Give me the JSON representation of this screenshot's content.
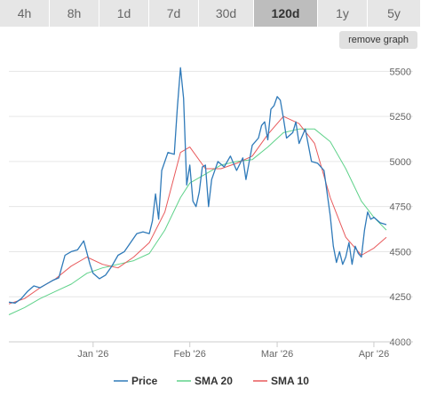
{
  "timeframes": [
    {
      "label": "4h",
      "active": false
    },
    {
      "label": "8h",
      "active": false
    },
    {
      "label": "1d",
      "active": false
    },
    {
      "label": "7d",
      "active": false
    },
    {
      "label": "30d",
      "active": false
    },
    {
      "label": "120d",
      "active": true
    },
    {
      "label": "1y",
      "active": false
    },
    {
      "label": "5y",
      "active": false
    }
  ],
  "remove_graph_label": "remove graph",
  "colors": {
    "price": "#2f7ab9",
    "sma20": "#5fd28a",
    "sma10": "#e8595b",
    "grid": "#e6e6e6"
  },
  "chart_data": {
    "type": "line",
    "x_range": [
      "2025-12-05",
      "2026-04-05"
    ],
    "ylim": [
      4000,
      5600
    ],
    "y_ticks": [
      4000,
      4250,
      4500,
      4750,
      5000,
      5250,
      5500
    ],
    "x_ticks": [
      {
        "label": "Jan '26",
        "date": "2026-01-01"
      },
      {
        "label": "Feb '26",
        "date": "2026-02-01"
      },
      {
        "label": "Mar '26",
        "date": "2026-03-01"
      },
      {
        "label": "Apr '26",
        "date": "2026-04-01"
      }
    ],
    "grid": true,
    "legend_position": "bottom-center",
    "series": [
      {
        "name": "Price",
        "color": "#2f7ab9",
        "points": [
          [
            "2025-12-05",
            4220
          ],
          [
            "2025-12-07",
            4215
          ],
          [
            "2025-12-09",
            4240
          ],
          [
            "2025-12-11",
            4280
          ],
          [
            "2025-12-13",
            4310
          ],
          [
            "2025-12-15",
            4300
          ],
          [
            "2025-12-17",
            4320
          ],
          [
            "2025-12-19",
            4340
          ],
          [
            "2025-12-21",
            4355
          ],
          [
            "2025-12-23",
            4480
          ],
          [
            "2025-12-25",
            4500
          ],
          [
            "2025-12-27",
            4510
          ],
          [
            "2025-12-29",
            4560
          ],
          [
            "2025-12-31",
            4430
          ],
          [
            "2026-01-01",
            4380
          ],
          [
            "2026-01-03",
            4350
          ],
          [
            "2026-01-05",
            4370
          ],
          [
            "2026-01-07",
            4420
          ],
          [
            "2026-01-09",
            4480
          ],
          [
            "2026-01-11",
            4500
          ],
          [
            "2026-01-13",
            4550
          ],
          [
            "2026-01-15",
            4600
          ],
          [
            "2026-01-17",
            4610
          ],
          [
            "2026-01-19",
            4600
          ],
          [
            "2026-01-20",
            4670
          ],
          [
            "2026-01-21",
            4820
          ],
          [
            "2026-01-22",
            4680
          ],
          [
            "2026-01-23",
            4950
          ],
          [
            "2026-01-25",
            5050
          ],
          [
            "2026-01-27",
            5040
          ],
          [
            "2026-01-28",
            5300
          ],
          [
            "2026-01-29",
            5520
          ],
          [
            "2026-01-30",
            5350
          ],
          [
            "2026-01-31",
            4870
          ],
          [
            "2026-02-01",
            4980
          ],
          [
            "2026-02-02",
            4780
          ],
          [
            "2026-02-03",
            4750
          ],
          [
            "2026-02-04",
            4830
          ],
          [
            "2026-02-05",
            4970
          ],
          [
            "2026-02-06",
            4980
          ],
          [
            "2026-02-07",
            4750
          ],
          [
            "2026-02-08",
            4900
          ],
          [
            "2026-02-10",
            5000
          ],
          [
            "2026-02-12",
            4970
          ],
          [
            "2026-02-14",
            5030
          ],
          [
            "2026-02-16",
            4950
          ],
          [
            "2026-02-18",
            5020
          ],
          [
            "2026-02-19",
            4900
          ],
          [
            "2026-02-21",
            5090
          ],
          [
            "2026-02-23",
            5130
          ],
          [
            "2026-02-24",
            5200
          ],
          [
            "2026-02-25",
            5220
          ],
          [
            "2026-02-26",
            5120
          ],
          [
            "2026-02-27",
            5290
          ],
          [
            "2026-02-28",
            5310
          ],
          [
            "2026-03-01",
            5360
          ],
          [
            "2026-03-02",
            5340
          ],
          [
            "2026-03-03",
            5240
          ],
          [
            "2026-03-04",
            5130
          ],
          [
            "2026-03-06",
            5160
          ],
          [
            "2026-03-07",
            5220
          ],
          [
            "2026-03-08",
            5100
          ],
          [
            "2026-03-10",
            5180
          ],
          [
            "2026-03-12",
            5000
          ],
          [
            "2026-03-14",
            4990
          ],
          [
            "2026-03-16",
            4950
          ],
          [
            "2026-03-18",
            4700
          ],
          [
            "2026-03-19",
            4530
          ],
          [
            "2026-03-20",
            4440
          ],
          [
            "2026-03-21",
            4500
          ],
          [
            "2026-03-22",
            4430
          ],
          [
            "2026-03-23",
            4470
          ],
          [
            "2026-03-24",
            4550
          ],
          [
            "2026-03-25",
            4430
          ],
          [
            "2026-03-26",
            4530
          ],
          [
            "2026-03-27",
            4490
          ],
          [
            "2026-03-28",
            4470
          ],
          [
            "2026-03-29",
            4620
          ],
          [
            "2026-03-30",
            4720
          ],
          [
            "2026-03-31",
            4680
          ],
          [
            "2026-04-01",
            4690
          ],
          [
            "2026-04-03",
            4660
          ],
          [
            "2026-04-05",
            4650
          ]
        ]
      },
      {
        "name": "SMA 20",
        "color": "#5fd28a",
        "points": [
          [
            "2025-12-05",
            4150
          ],
          [
            "2025-12-10",
            4190
          ],
          [
            "2025-12-15",
            4240
          ],
          [
            "2025-12-20",
            4280
          ],
          [
            "2025-12-25",
            4320
          ],
          [
            "2025-12-30",
            4380
          ],
          [
            "2026-01-04",
            4410
          ],
          [
            "2026-01-09",
            4430
          ],
          [
            "2026-01-14",
            4450
          ],
          [
            "2026-01-19",
            4490
          ],
          [
            "2026-01-24",
            4620
          ],
          [
            "2026-01-29",
            4800
          ],
          [
            "2026-02-01",
            4880
          ],
          [
            "2026-02-06",
            4930
          ],
          [
            "2026-02-11",
            4980
          ],
          [
            "2026-02-16",
            5000
          ],
          [
            "2026-02-21",
            5010
          ],
          [
            "2026-02-26",
            5080
          ],
          [
            "2026-03-03",
            5160
          ],
          [
            "2026-03-08",
            5180
          ],
          [
            "2026-03-13",
            5180
          ],
          [
            "2026-03-18",
            5110
          ],
          [
            "2026-03-23",
            4960
          ],
          [
            "2026-03-28",
            4780
          ],
          [
            "2026-04-01",
            4690
          ],
          [
            "2026-04-05",
            4620
          ]
        ]
      },
      {
        "name": "SMA 10",
        "color": "#e8595b",
        "points": [
          [
            "2025-12-05",
            4210
          ],
          [
            "2025-12-10",
            4240
          ],
          [
            "2025-12-15",
            4300
          ],
          [
            "2025-12-20",
            4350
          ],
          [
            "2025-12-25",
            4420
          ],
          [
            "2025-12-30",
            4470
          ],
          [
            "2026-01-04",
            4430
          ],
          [
            "2026-01-09",
            4410
          ],
          [
            "2026-01-14",
            4470
          ],
          [
            "2026-01-19",
            4550
          ],
          [
            "2026-01-24",
            4720
          ],
          [
            "2026-01-29",
            5050
          ],
          [
            "2026-02-01",
            5080
          ],
          [
            "2026-02-06",
            4960
          ],
          [
            "2026-02-11",
            4960
          ],
          [
            "2026-02-16",
            4990
          ],
          [
            "2026-02-21",
            5030
          ],
          [
            "2026-02-26",
            5150
          ],
          [
            "2026-03-03",
            5250
          ],
          [
            "2026-03-08",
            5210
          ],
          [
            "2026-03-13",
            5100
          ],
          [
            "2026-03-18",
            4800
          ],
          [
            "2026-03-23",
            4580
          ],
          [
            "2026-03-28",
            4480
          ],
          [
            "2026-04-01",
            4520
          ],
          [
            "2026-04-05",
            4580
          ]
        ]
      }
    ]
  }
}
